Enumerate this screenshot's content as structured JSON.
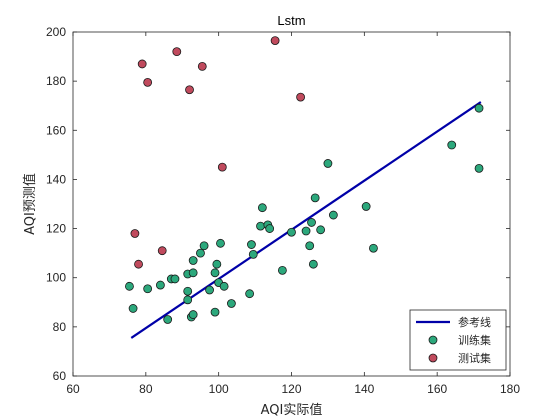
{
  "chart_data": {
    "type": "scatter",
    "title": "Lstm",
    "xlabel": "AQI实际值",
    "ylabel": "AQI预测值",
    "xlim": [
      60,
      180
    ],
    "ylim": [
      60,
      200
    ],
    "xticks": [
      60,
      80,
      100,
      120,
      140,
      160,
      180
    ],
    "yticks": [
      60,
      80,
      100,
      120,
      140,
      160,
      180,
      200
    ],
    "grid": false,
    "legend_position": "bottom-right",
    "series": [
      {
        "name": "参考线",
        "kind": "line",
        "color": "#0000a8",
        "points": [
          [
            76,
            75.5
          ],
          [
            172,
            171.5
          ]
        ]
      },
      {
        "name": "训练集",
        "kind": "scatter",
        "color": "#2ca87c",
        "points": [
          [
            75.5,
            96.5
          ],
          [
            76.5,
            87.5
          ],
          [
            80.5,
            95.5
          ],
          [
            84,
            97
          ],
          [
            86,
            83
          ],
          [
            87,
            99.5
          ],
          [
            88,
            99.5
          ],
          [
            91.5,
            91
          ],
          [
            91.5,
            94.5
          ],
          [
            91.5,
            101.5
          ],
          [
            92.5,
            84
          ],
          [
            93,
            85
          ],
          [
            93,
            102
          ],
          [
            93,
            107
          ],
          [
            95,
            110
          ],
          [
            96,
            113
          ],
          [
            97.5,
            95
          ],
          [
            99,
            86
          ],
          [
            99,
            102
          ],
          [
            99.5,
            105.5
          ],
          [
            100,
            98
          ],
          [
            100.5,
            114
          ],
          [
            101.5,
            96.5
          ],
          [
            103.5,
            89.5
          ],
          [
            108.5,
            93.5
          ],
          [
            109,
            113.5
          ],
          [
            109.5,
            109.5
          ],
          [
            111.5,
            121
          ],
          [
            112,
            128.5
          ],
          [
            113.5,
            121.5
          ],
          [
            114,
            120
          ],
          [
            117.5,
            103
          ],
          [
            120,
            118.5
          ],
          [
            124,
            119
          ],
          [
            125.5,
            122.5
          ],
          [
            125,
            113
          ],
          [
            126,
            105.5
          ],
          [
            126.5,
            132.5
          ],
          [
            128,
            119.5
          ],
          [
            130,
            146.5
          ],
          [
            131.5,
            125.5
          ],
          [
            140.5,
            129
          ],
          [
            142.5,
            112
          ],
          [
            164,
            154
          ],
          [
            171.5,
            169
          ],
          [
            171.5,
            144.5
          ]
        ]
      },
      {
        "name": "测试集",
        "kind": "scatter",
        "color": "#c04a5d",
        "points": [
          [
            77,
            118
          ],
          [
            78,
            105.5
          ],
          [
            79,
            187
          ],
          [
            80.5,
            179.5
          ],
          [
            84.5,
            111
          ],
          [
            88.5,
            192
          ],
          [
            92,
            176.5
          ],
          [
            95.5,
            186
          ],
          [
            101,
            145
          ],
          [
            115.5,
            196.5
          ],
          [
            122.5,
            173.5
          ]
        ]
      }
    ]
  }
}
